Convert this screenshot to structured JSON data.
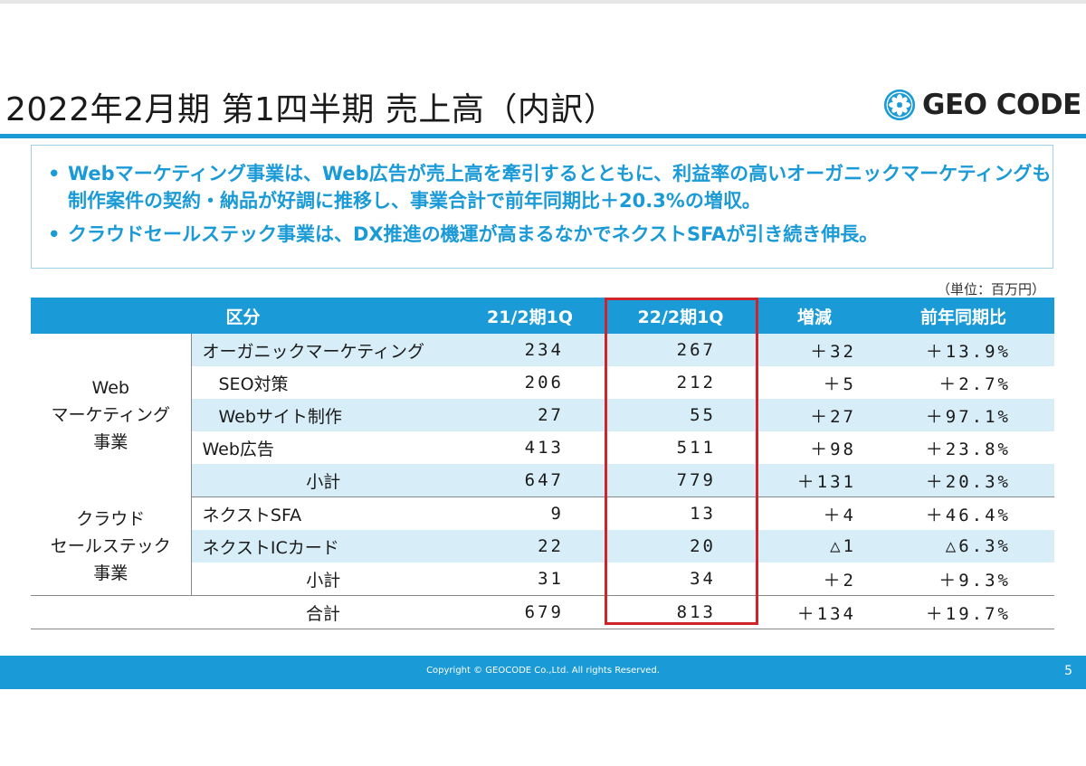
{
  "title": "2022年2月期 第1四半期 売上高（内訳）",
  "logo": {
    "text": "GEO CODE",
    "icon": "flower-emblem-icon",
    "color": "#1a9ad6"
  },
  "accent_color": "#1a9ad6",
  "highlight_color": "#d0242b",
  "bullets": [
    "Webマーケティング事業は、Web広告が売上高を牽引するとともに、利益率の高いオーガニックマーケティングも制作案件の契約・納品が好調に推移し、事業合計で前年同期比＋20.3%の増収。",
    "クラウドセールステック事業は、DX推進の機運が高まるなかでネクストSFAが引き続き伸長。"
  ],
  "unit": "（単位：百万円）",
  "table": {
    "headers": [
      "区分",
      "21/2期1Q",
      "22/2期1Q",
      "増減",
      "前年同期比"
    ],
    "groups": [
      {
        "category": "Web\nマーケティング\n事業",
        "rows": [
          {
            "item": "オーガニックマーケティング",
            "prev": "234",
            "curr": "267",
            "diff": "＋32",
            "ratio": "＋13.9%"
          },
          {
            "item": "SEO対策",
            "prev": "206",
            "curr": "212",
            "diff": "＋5",
            "ratio": "＋2.7%"
          },
          {
            "item": "Webサイト制作",
            "prev": "27",
            "curr": "55",
            "diff": "＋27",
            "ratio": "＋97.1%"
          },
          {
            "item": "Web広告",
            "prev": "413",
            "curr": "511",
            "diff": "＋98",
            "ratio": "＋23.8%"
          },
          {
            "item": "小計",
            "prev": "647",
            "curr": "779",
            "diff": "＋131",
            "ratio": "＋20.3%"
          }
        ]
      },
      {
        "category": "クラウド\nセールステック\n事業",
        "rows": [
          {
            "item": "ネクストSFA",
            "prev": "9",
            "curr": "13",
            "diff": "＋4",
            "ratio": "＋46.4%"
          },
          {
            "item": "ネクストICカード",
            "prev": "22",
            "curr": "20",
            "diff": "△1",
            "ratio": "△6.3%"
          },
          {
            "item": "小計",
            "prev": "31",
            "curr": "34",
            "diff": "＋2",
            "ratio": "＋9.3%"
          }
        ]
      }
    ],
    "total": {
      "item": "合計",
      "prev": "679",
      "curr": "813",
      "diff": "＋134",
      "ratio": "＋19.7%"
    }
  },
  "footer": {
    "copyright": "Copyright © GEOCODE Co.,Ltd. All rights Reserved.",
    "page": "5"
  }
}
